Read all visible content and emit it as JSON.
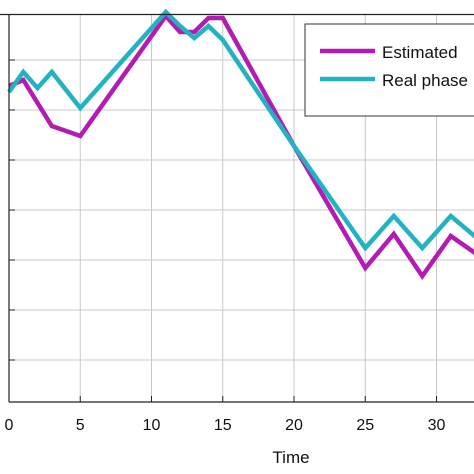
{
  "chart_data": {
    "type": "line",
    "xlabel": "Time",
    "ylabel": "",
    "xlim": [
      -0.6,
      33.2
    ],
    "ylim": [
      -1.05,
      0.82
    ],
    "x_ticks": [
      0,
      5,
      10,
      15,
      20,
      25,
      30
    ],
    "x_tick_labels": [
      "0",
      "5",
      "10",
      "15",
      "20",
      "25",
      "30"
    ],
    "y_grid_values": [
      0.75,
      0.5,
      0.25,
      0.0,
      -0.25,
      -0.5,
      -0.75,
      -1.0
    ],
    "grid": true,
    "legend_position": "top-right",
    "series": [
      {
        "name": "Estimated",
        "color": "#b21cb2",
        "x": [
          0,
          1,
          3,
          5,
          11,
          12,
          13,
          14,
          15,
          20,
          25,
          27,
          29,
          31,
          33
        ],
        "y": [
          0.37,
          0.4,
          0.17,
          0.12,
          0.72,
          0.64,
          0.64,
          0.71,
          0.71,
          0.07,
          -0.54,
          -0.37,
          -0.58,
          -0.38,
          -0.48
        ]
      },
      {
        "name": "Real phase",
        "color": "#22b2c2",
        "x": [
          0,
          1,
          2,
          3,
          5,
          11,
          12,
          13,
          14,
          15,
          20,
          25,
          27,
          29,
          31,
          33
        ],
        "y": [
          0.34,
          0.44,
          0.36,
          0.44,
          0.26,
          0.74,
          0.67,
          0.61,
          0.67,
          0.6,
          0.07,
          -0.44,
          -0.28,
          -0.44,
          -0.28,
          -0.4
        ]
      }
    ]
  }
}
